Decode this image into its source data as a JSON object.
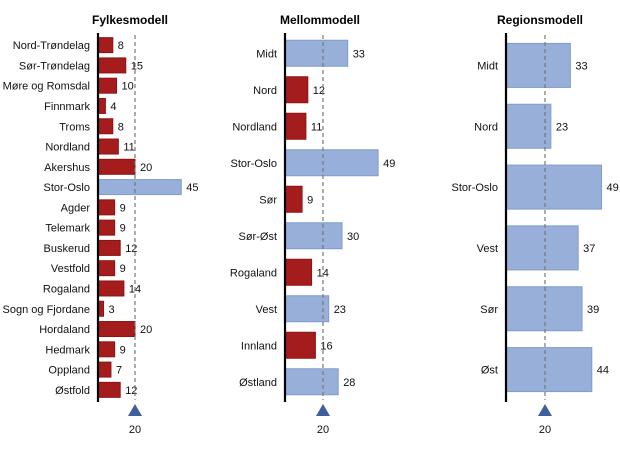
{
  "chart_data": [
    {
      "type": "bar",
      "orientation": "horizontal",
      "title": "Fylkesmodell",
      "categories": [
        "Nord-Trøndelag",
        "Sør-Trøndelag",
        "Møre og Romsdal",
        "Finnmark",
        "Troms",
        "Nordland",
        "Akershus",
        "Stor-Oslo",
        "Agder",
        "Telemark",
        "Buskerud",
        "Vestfold",
        "Rogaland",
        "Sogn og Fjordane",
        "Hordaland",
        "Hedmark",
        "Oppland",
        "Østfold"
      ],
      "values": [
        8,
        15,
        10,
        4,
        8,
        11,
        20,
        45,
        9,
        9,
        12,
        9,
        14,
        3,
        20,
        9,
        7,
        12
      ],
      "reference_line": 20,
      "reference_label": "20"
    },
    {
      "type": "bar",
      "orientation": "horizontal",
      "title": "Mellommodell",
      "categories": [
        "Midt",
        "Nord",
        "Nordland",
        "Stor-Oslo",
        "Sør",
        "Sør-Øst",
        "Rogaland",
        "Vest",
        "Innland",
        "Østland"
      ],
      "values": [
        33,
        12,
        11,
        49,
        9,
        30,
        14,
        23,
        16,
        28
      ],
      "reference_line": 20,
      "reference_label": "20"
    },
    {
      "type": "bar",
      "orientation": "horizontal",
      "title": "Regionsmodell",
      "categories": [
        "Midt",
        "Nord",
        "Stor-Oslo",
        "Vest",
        "Sør",
        "Øst"
      ],
      "values": [
        33,
        23,
        49,
        37,
        39,
        44
      ],
      "reference_line": 20,
      "reference_label": "20"
    }
  ],
  "colors": {
    "above": "#98b0d9",
    "above_stroke": "#7f9bcf",
    "below": "#a51c1c",
    "below_stroke": "#8e1414",
    "marker": "#3f5f9a"
  }
}
